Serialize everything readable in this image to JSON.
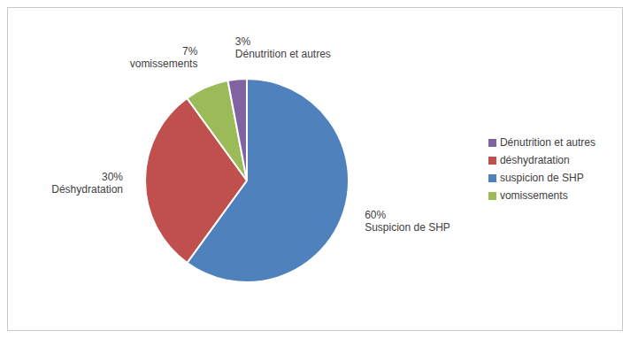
{
  "chart_data": {
    "type": "pie",
    "categories": [
      "suspicion de SHP",
      "déshydratation",
      "vomissements",
      "Dénutrition et autres"
    ],
    "labels": [
      "Suspicion de SHP",
      "Déshydratation",
      "vomissements",
      "Dénutrition et autres"
    ],
    "values": [
      60,
      30,
      7,
      3
    ],
    "value_labels": [
      "60%",
      "30%",
      "7%",
      "3%"
    ],
    "colors": [
      "#4f81bd",
      "#c0504d",
      "#9bbb59",
      "#8064a2"
    ],
    "data_labels": true,
    "legend": "right"
  }
}
